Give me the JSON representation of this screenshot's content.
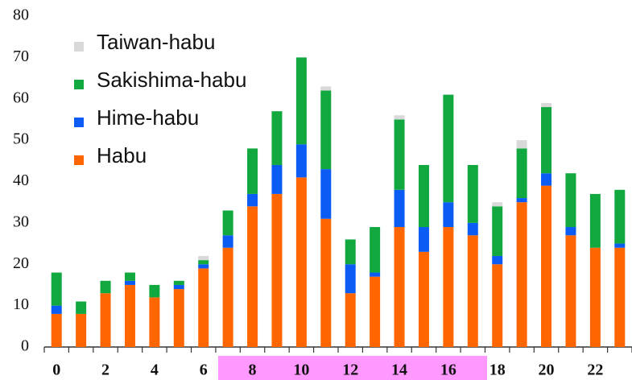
{
  "chart_data": {
    "type": "stacked_bar",
    "categories": [
      "0",
      null,
      "2",
      null,
      "4",
      null,
      "6",
      null,
      "8",
      null,
      "10",
      null,
      "12",
      null,
      "14",
      null,
      "16",
      null,
      "18",
      null,
      "20",
      null,
      "22",
      null
    ],
    "series": [
      {
        "name": "Habu",
        "color": "#ff6600",
        "values": [
          8,
          8,
          13,
          15,
          12,
          14,
          19,
          24,
          34,
          37,
          41,
          31,
          13,
          17,
          29,
          23,
          29,
          27,
          20,
          35,
          39,
          27,
          24,
          24
        ]
      },
      {
        "name": "Hime-habu",
        "color": "#0a5cf5",
        "values": [
          2,
          0,
          0,
          1,
          0,
          1,
          1,
          3,
          3,
          7,
          8,
          12,
          7,
          1,
          9,
          6,
          6,
          3,
          2,
          1,
          3,
          2,
          0,
          1
        ]
      },
      {
        "name": "Sakishima-habu",
        "color": "#12a840",
        "values": [
          8,
          3,
          3,
          2,
          3,
          1,
          1,
          6,
          11,
          13,
          21,
          19,
          6,
          11,
          17,
          15,
          26,
          14,
          12,
          12,
          16,
          13,
          13,
          13
        ]
      },
      {
        "name": "Taiwan-habu",
        "color": "#d9d9d9",
        "values": [
          0,
          0,
          0,
          0,
          0,
          0,
          1,
          0,
          0,
          0,
          0,
          1,
          0,
          0,
          1,
          0,
          0,
          0,
          1,
          2,
          1,
          0,
          0,
          0
        ]
      }
    ],
    "ylim": [
      0,
      80
    ],
    "yticks": [
      0,
      10,
      20,
      30,
      40,
      50,
      60,
      70,
      80
    ]
  }
}
